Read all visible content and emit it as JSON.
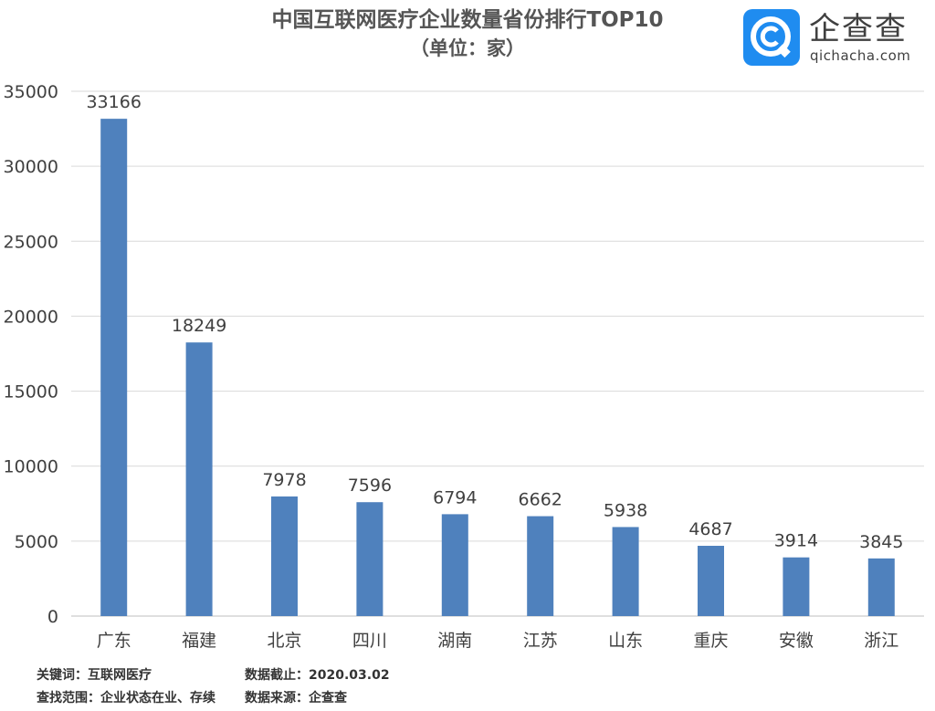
{
  "chart_data": {
    "type": "bar",
    "title": "中国互联网医疗企业数量省份排行TOP10",
    "subtitle": "（单位：家）",
    "categories": [
      "广东",
      "福建",
      "北京",
      "四川",
      "湖南",
      "江苏",
      "山东",
      "重庆",
      "安徽",
      "浙江"
    ],
    "values": [
      33166,
      18249,
      7978,
      7596,
      6794,
      6662,
      5938,
      4687,
      3914,
      3845
    ],
    "ylim": [
      0,
      35000
    ],
    "yticks": [
      "0",
      "5000",
      "10000",
      "15000",
      "20000",
      "25000",
      "30000",
      "35000"
    ],
    "grid": true,
    "bar_color": "#4f81bd"
  },
  "logo": {
    "name": "企查查",
    "domain": "qichacha.com",
    "color": "#1f8cf0"
  },
  "footer": {
    "keywords": "关键词：互联网医疗",
    "cutoff": "数据截止：2020.03.02",
    "scope": "查找范围：企业状态在业、存续",
    "source": "数据来源：企查查"
  }
}
